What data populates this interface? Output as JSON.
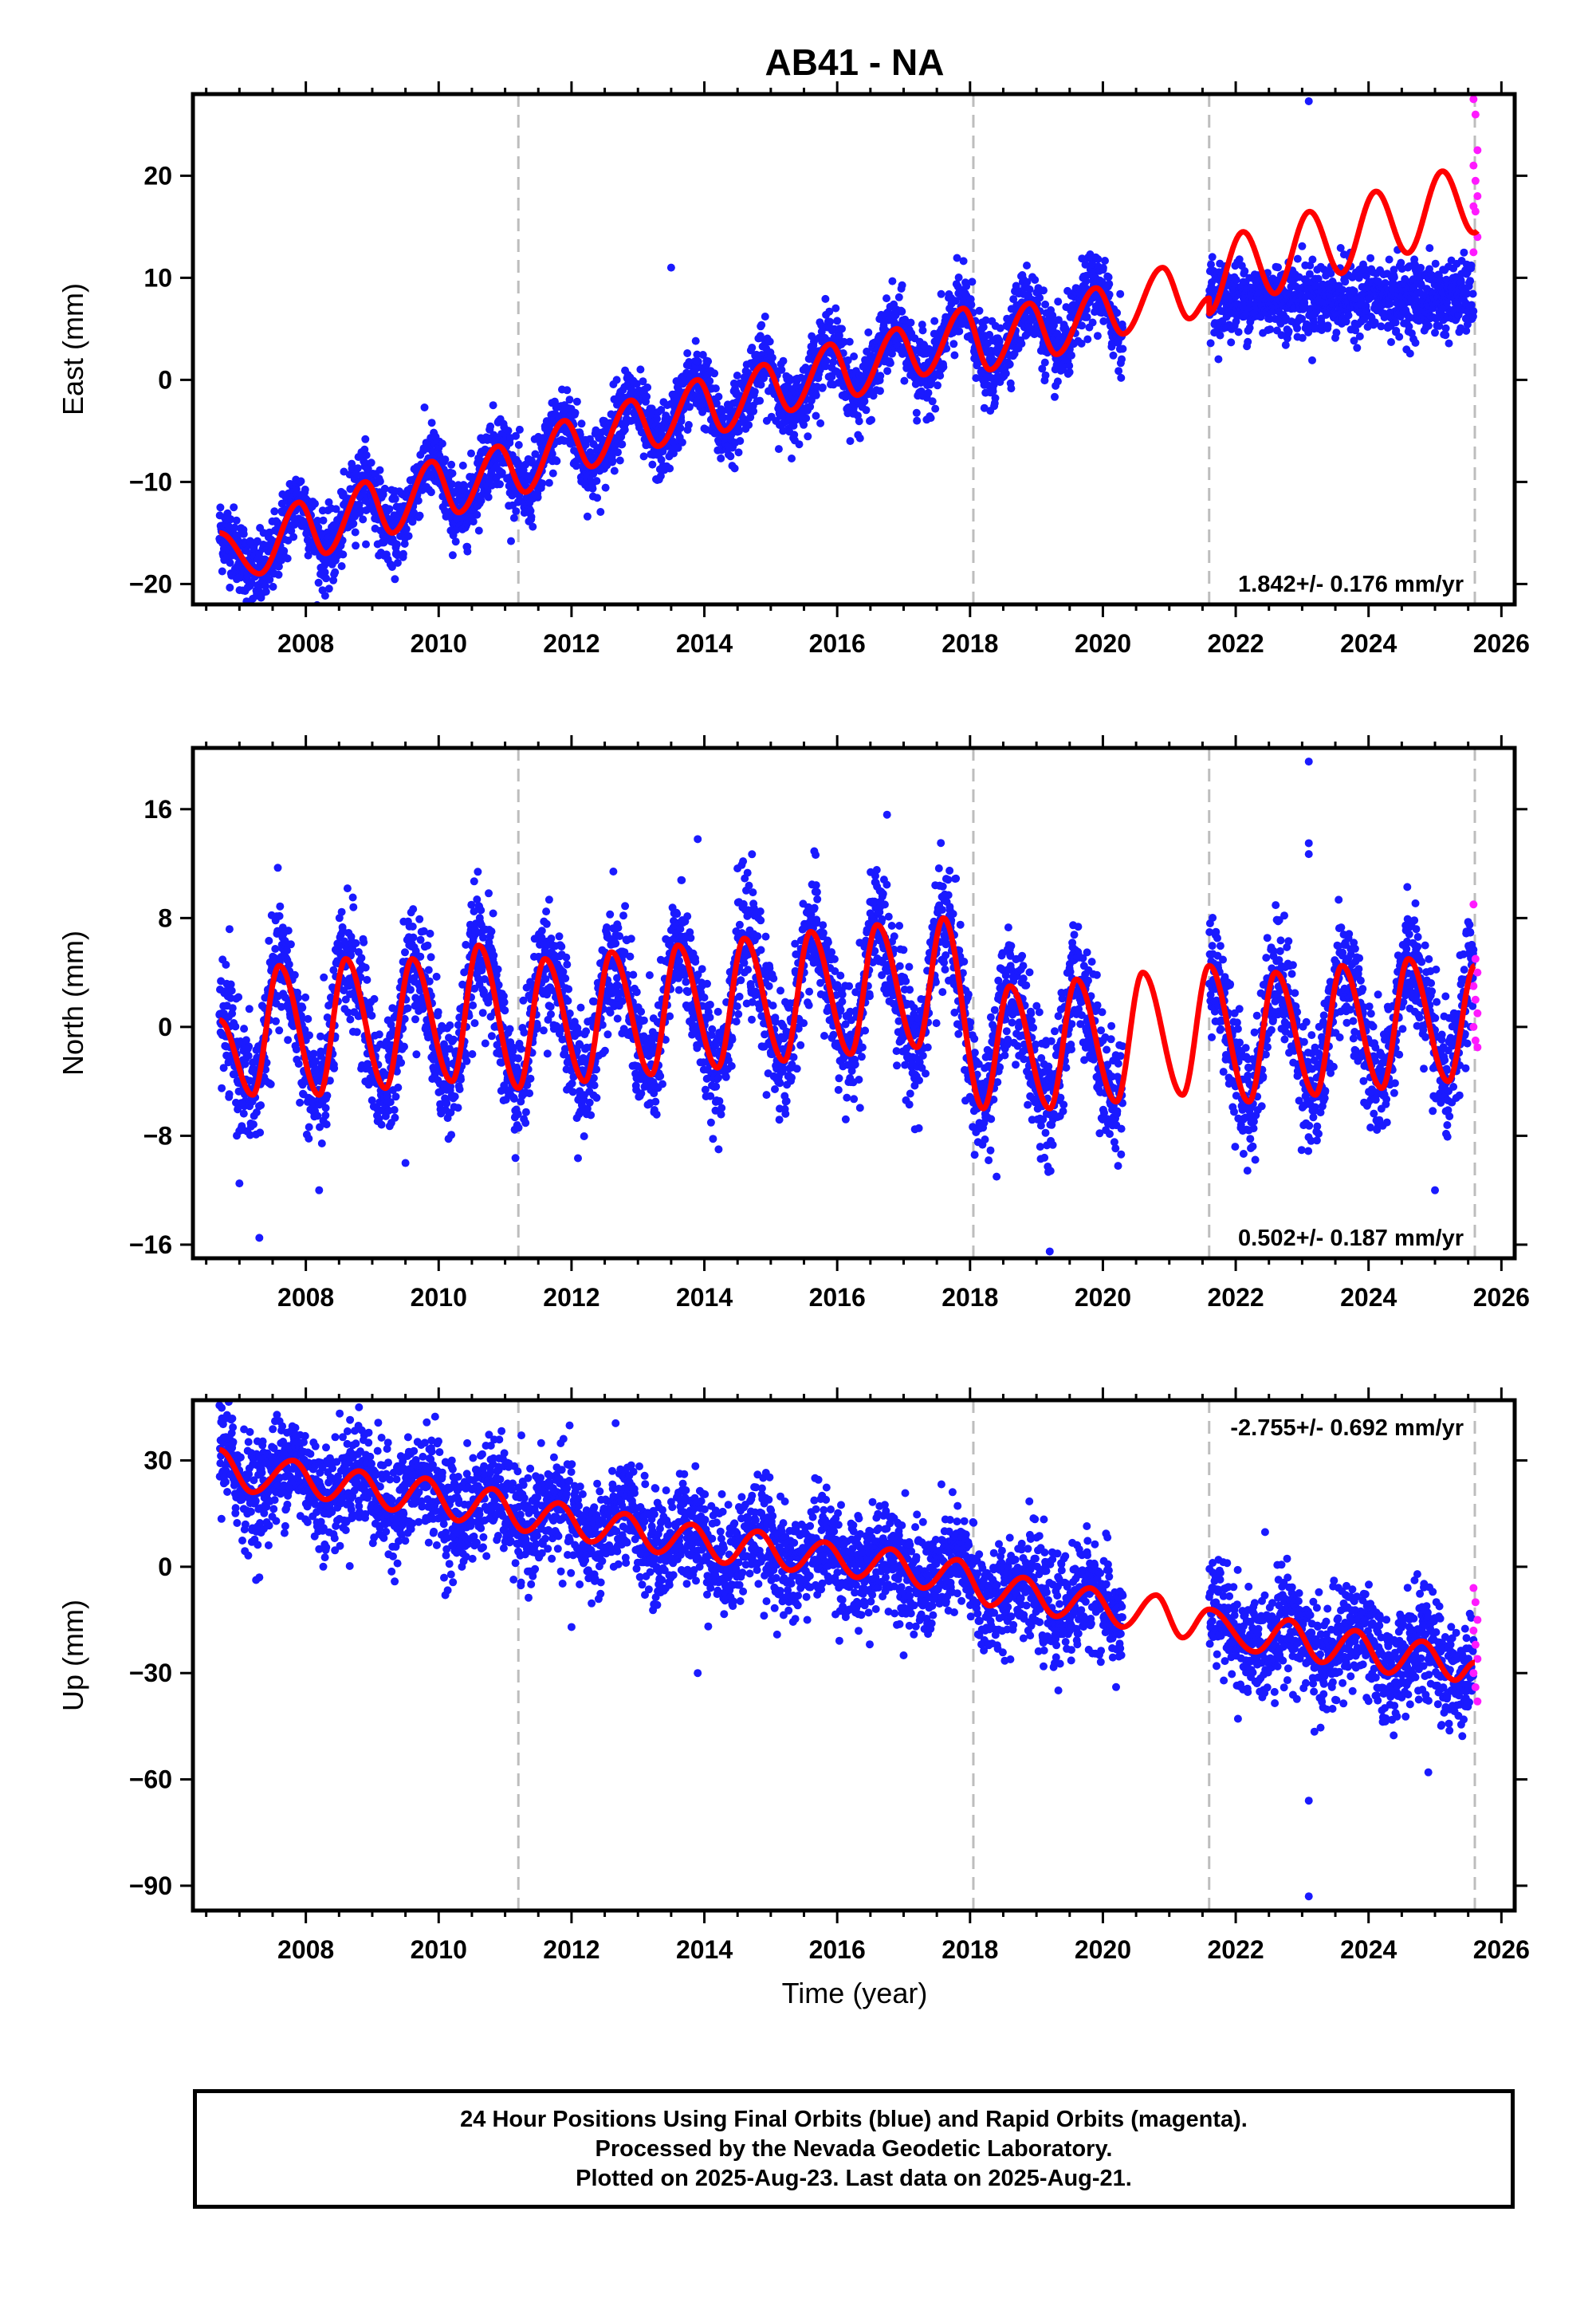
{
  "title": "AB41 - NA",
  "colors": {
    "final_orbits": "#1a1aff",
    "rapid_orbits": "#ff1aff",
    "model": "#ff0000",
    "equipment_change_lines": "#bdbdbd"
  },
  "xlabel": "Time (year)",
  "footer": {
    "line1": "24 Hour Positions Using Final Orbits (blue) and Rapid Orbits (magenta).",
    "line2": "Processed by the Nevada Geodetic Laboratory.",
    "line3": "Plotted on 2025-Aug-23. Last data on 2025-Aug-21."
  },
  "chart_data": [
    {
      "type": "scatter",
      "component": "east",
      "ylabel": "East (mm)",
      "rate_label": "1.842+/- 0.176 mm/yr",
      "xlim": [
        2006.3,
        2026.2
      ],
      "ylim": [
        -22,
        28
      ],
      "xticks": [
        2008,
        2010,
        2012,
        2014,
        2016,
        2018,
        2020,
        2022,
        2024,
        2026
      ],
      "yticks": [
        -20,
        -10,
        0,
        10,
        20
      ],
      "equipment_change_epochs": [
        2011.2,
        2018.05,
        2021.6,
        2025.6
      ],
      "data_gap": [
        2020.3,
        2021.6
      ],
      "series": [
        {
          "name": "Final Orbits",
          "x_range": [
            2006.7,
            2025.58
          ]
        },
        {
          "name": "Rapid Orbits",
          "x_range": [
            2025.58,
            2025.64
          ]
        }
      ],
      "model": {
        "first_epoch": 2006.7,
        "first_value": -15,
        "points": [
          [
            2007.3,
            -19
          ],
          [
            2007.9,
            -12
          ],
          [
            2008.3,
            -17
          ],
          [
            2008.9,
            -10
          ],
          [
            2009.3,
            -15
          ],
          [
            2009.9,
            -8
          ],
          [
            2010.3,
            -13
          ],
          [
            2010.9,
            -6.5
          ],
          [
            2011.3,
            -11
          ],
          [
            2011.9,
            -4
          ],
          [
            2012.3,
            -8.5
          ],
          [
            2012.9,
            -2
          ],
          [
            2013.3,
            -6.5
          ],
          [
            2013.9,
            0
          ],
          [
            2014.3,
            -5
          ],
          [
            2014.9,
            1.5
          ],
          [
            2015.3,
            -3
          ],
          [
            2015.9,
            3.5
          ],
          [
            2016.3,
            -1.5
          ],
          [
            2016.9,
            5
          ],
          [
            2017.3,
            0.5
          ],
          [
            2017.9,
            7
          ],
          [
            2018.3,
            1
          ],
          [
            2018.9,
            7.5
          ],
          [
            2019.3,
            2.5
          ],
          [
            2019.9,
            9
          ],
          [
            2020.3,
            4.5
          ],
          [
            2020.9,
            11
          ],
          [
            2021.3,
            6
          ],
          [
            2021.6,
            8
          ]
        ],
        "amplitude": 3.5,
        "phase_year": 0.85,
        "trend_start": 2021.6,
        "trend_start_value": 10,
        "trend_end": 2025.64,
        "trend_end_value": 18
      },
      "outliers": [
        [
          2013.5,
          11
        ],
        [
          2023.1,
          27.3
        ],
        [
          2017.2,
          -4
        ],
        [
          2024.7,
          8
        ]
      ],
      "rapid_values": [
        27.5,
        26,
        22.5,
        21,
        19.5,
        18,
        17,
        16.5,
        14,
        12.5
      ]
    },
    {
      "type": "scatter",
      "component": "north",
      "ylabel": "North (mm)",
      "rate_label": "0.502+/- 0.187 mm/yr",
      "xlim": [
        2006.3,
        2026.2
      ],
      "ylim": [
        -17,
        20.5
      ],
      "xticks": [
        2008,
        2010,
        2012,
        2014,
        2016,
        2018,
        2020,
        2022,
        2024,
        2026
      ],
      "yticks": [
        -16,
        -8,
        0,
        8,
        16
      ],
      "equipment_change_epochs": [
        2011.2,
        2018.05,
        2021.6,
        2025.6
      ],
      "data_gap": [
        2020.3,
        2021.6
      ],
      "series": [
        {
          "name": "Final Orbits",
          "x_range": [
            2006.7,
            2025.58
          ]
        },
        {
          "name": "Rapid Orbits",
          "x_range": [
            2025.58,
            2025.64
          ]
        }
      ],
      "model": {
        "first_epoch": 2006.7,
        "first_value": 0.5,
        "points": [
          [
            2007.2,
            -5
          ],
          [
            2007.6,
            4.5
          ],
          [
            2008.2,
            -5
          ],
          [
            2008.6,
            5
          ],
          [
            2009.2,
            -4.5
          ],
          [
            2009.6,
            5
          ],
          [
            2010.2,
            -4
          ],
          [
            2010.6,
            6
          ],
          [
            2011.2,
            -4.5
          ],
          [
            2011.6,
            5
          ],
          [
            2012.2,
            -4
          ],
          [
            2012.6,
            5.5
          ],
          [
            2013.2,
            -3.5
          ],
          [
            2013.6,
            6
          ],
          [
            2014.2,
            -3
          ],
          [
            2014.6,
            6.5
          ],
          [
            2015.2,
            -2.5
          ],
          [
            2015.6,
            7
          ],
          [
            2016.2,
            -2
          ],
          [
            2016.6,
            7.5
          ],
          [
            2017.2,
            -1.5
          ],
          [
            2017.6,
            8
          ],
          [
            2018.2,
            -6
          ],
          [
            2018.6,
            3
          ],
          [
            2019.2,
            -6
          ],
          [
            2019.6,
            3.5
          ],
          [
            2020.2,
            -5.5
          ],
          [
            2020.6,
            4
          ],
          [
            2021.2,
            -5
          ],
          [
            2021.6,
            4.5
          ],
          [
            2022.2,
            -5.5
          ],
          [
            2022.6,
            4
          ],
          [
            2023.2,
            -5
          ],
          [
            2023.6,
            4.5
          ],
          [
            2024.2,
            -4.5
          ],
          [
            2024.6,
            5
          ],
          [
            2025.2,
            -4
          ],
          [
            2025.6,
            4.5
          ]
        ],
        "amplitude": 4.5
      },
      "outliers": [
        [
          2007.0,
          -11.5
        ],
        [
          2007.3,
          -15.5
        ],
        [
          2008.2,
          -12
        ],
        [
          2019.2,
          -16.5
        ],
        [
          2023.1,
          19.5
        ],
        [
          2023.1,
          13.5
        ],
        [
          2023.1,
          12.7
        ],
        [
          2013.9,
          13.8
        ],
        [
          2025.0,
          -12
        ],
        [
          2018.4,
          -11
        ],
        [
          2009.5,
          -10
        ]
      ],
      "rapid_values": [
        9,
        5,
        4,
        3,
        2,
        1,
        0,
        -1,
        -1.5
      ]
    },
    {
      "type": "scatter",
      "component": "up",
      "ylabel": "Up (mm)",
      "rate_label": "-2.755+/- 0.692 mm/yr",
      "xlim": [
        2006.3,
        2026.2
      ],
      "ylim": [
        -97,
        47
      ],
      "xticks": [
        2008,
        2010,
        2012,
        2014,
        2016,
        2018,
        2020,
        2022,
        2024,
        2026
      ],
      "yticks": [
        -90,
        -60,
        -30,
        0,
        30
      ],
      "equipment_change_epochs": [
        2011.2,
        2018.05,
        2021.6,
        2025.6
      ],
      "data_gap": [
        2020.3,
        2021.6
      ],
      "series": [
        {
          "name": "Final Orbits",
          "x_range": [
            2006.7,
            2025.58
          ]
        },
        {
          "name": "Rapid Orbits",
          "x_range": [
            2025.58,
            2025.64
          ]
        }
      ],
      "model": {
        "first_epoch": 2006.7,
        "first_value": 33,
        "points": [
          [
            2007.2,
            21
          ],
          [
            2007.8,
            30
          ],
          [
            2008.3,
            19
          ],
          [
            2008.8,
            27
          ],
          [
            2009.3,
            16
          ],
          [
            2009.8,
            25
          ],
          [
            2010.3,
            13
          ],
          [
            2010.8,
            22
          ],
          [
            2011.3,
            10
          ],
          [
            2011.8,
            18
          ],
          [
            2012.3,
            7
          ],
          [
            2012.8,
            15
          ],
          [
            2013.3,
            4
          ],
          [
            2013.8,
            12
          ],
          [
            2014.3,
            1
          ],
          [
            2014.8,
            10
          ],
          [
            2015.3,
            -1
          ],
          [
            2015.8,
            7
          ],
          [
            2016.3,
            -3
          ],
          [
            2016.8,
            5
          ],
          [
            2017.3,
            -6
          ],
          [
            2017.8,
            2
          ],
          [
            2018.3,
            -11
          ],
          [
            2018.8,
            -3
          ],
          [
            2019.3,
            -14
          ],
          [
            2019.8,
            -6
          ],
          [
            2020.3,
            -17
          ],
          [
            2020.8,
            -8
          ],
          [
            2021.2,
            -20
          ],
          [
            2021.6,
            -12
          ],
          [
            2022.3,
            -24
          ],
          [
            2022.8,
            -15
          ],
          [
            2023.3,
            -27
          ],
          [
            2023.8,
            -18
          ],
          [
            2024.3,
            -30
          ],
          [
            2024.8,
            -21
          ],
          [
            2025.3,
            -32
          ],
          [
            2025.6,
            -27
          ]
        ],
        "amplitude": 4.5
      },
      "outliers": [
        [
          2008.8,
          45
        ],
        [
          2007.3,
          -3
        ],
        [
          2013.9,
          -30
        ],
        [
          2023.1,
          -93
        ],
        [
          2023.1,
          -66
        ],
        [
          2024.9,
          -58
        ],
        [
          2012.0,
          -17
        ],
        [
          2017.0,
          -25
        ],
        [
          2010.1,
          -8
        ]
      ],
      "rapid_values": [
        -6,
        -10,
        -15,
        -18,
        -22,
        -26,
        -30,
        -34,
        -38
      ]
    }
  ]
}
